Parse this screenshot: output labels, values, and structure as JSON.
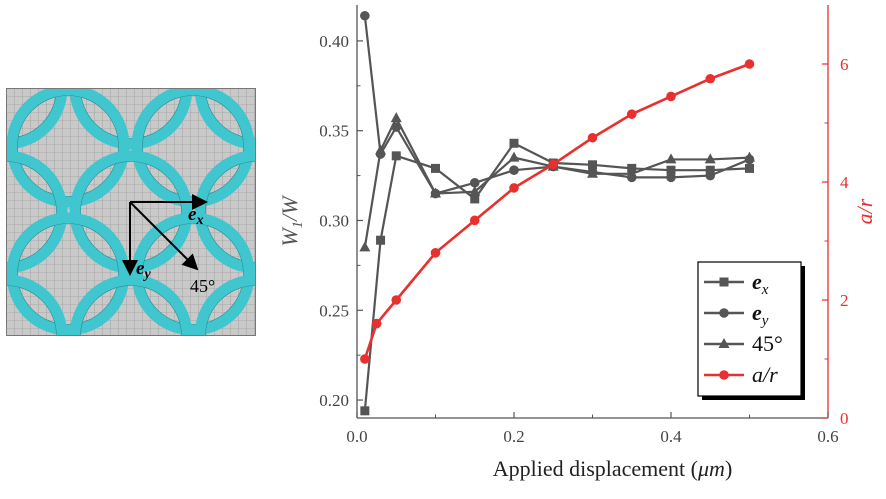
{
  "mesh": {
    "vector_labels": {
      "ex": "e",
      "ex_sub": "x",
      "ey": "e",
      "ey_sub": "y",
      "diag": "45°"
    },
    "colors": {
      "background": "#c9c9c9",
      "band": "#3fc6cf",
      "grid_line": "#8a8a8a",
      "arrow": "#000000"
    }
  },
  "chart_data": {
    "type": "line",
    "xlabel": "Applied displacement (μm)",
    "ylabel_left": "W1/W",
    "ylabel_right": "a/r",
    "xlim": [
      0,
      0.6
    ],
    "ylim_left": [
      0.19,
      0.42
    ],
    "ylim_right": [
      0,
      7
    ],
    "x_ticks": [
      "0.0",
      "0.2",
      "0.4",
      "0.6"
    ],
    "y_left_ticks": [
      "0.20",
      "0.25",
      "0.30",
      "0.35",
      "0.40"
    ],
    "y_right_ticks": [
      "0",
      "2",
      "4",
      "6"
    ],
    "legend_position": "bottom-right",
    "series": [
      {
        "name": "ex",
        "axis": "left",
        "marker": "square",
        "color": "#555555",
        "x": [
          0.01,
          0.03,
          0.05,
          0.1,
          0.15,
          0.2,
          0.25,
          0.3,
          0.35,
          0.4,
          0.45,
          0.5
        ],
        "y": [
          0.194,
          0.289,
          0.336,
          0.329,
          0.312,
          0.343,
          0.332,
          0.331,
          0.329,
          0.328,
          0.328,
          0.329
        ]
      },
      {
        "name": "ey",
        "axis": "left",
        "marker": "circle",
        "color": "#555555",
        "x": [
          0.01,
          0.03,
          0.05,
          0.1,
          0.15,
          0.2,
          0.25,
          0.3,
          0.35,
          0.4,
          0.45,
          0.5
        ],
        "y": [
          0.414,
          0.337,
          0.352,
          0.315,
          0.321,
          0.328,
          0.33,
          0.327,
          0.324,
          0.324,
          0.325,
          0.334
        ]
      },
      {
        "name": "45°",
        "axis": "left",
        "marker": "triangle",
        "color": "#555555",
        "x": [
          0.01,
          0.03,
          0.05,
          0.1,
          0.15,
          0.2,
          0.25,
          0.3,
          0.35,
          0.4,
          0.45,
          0.5
        ],
        "y": [
          0.285,
          0.339,
          0.357,
          0.315,
          0.316,
          0.335,
          0.33,
          0.326,
          0.326,
          0.334,
          0.334,
          0.335
        ]
      },
      {
        "name": "a/r",
        "axis": "right",
        "marker": "circle",
        "color": "#e8302e",
        "x": [
          0.01,
          0.025,
          0.05,
          0.1,
          0.15,
          0.2,
          0.25,
          0.3,
          0.35,
          0.4,
          0.45,
          0.5
        ],
        "y": [
          1.0,
          1.6,
          2.0,
          2.8,
          3.35,
          3.9,
          4.3,
          4.75,
          5.15,
          5.45,
          5.75,
          6.0
        ]
      }
    ],
    "legend": {
      "items": [
        {
          "label": "e",
          "sub": "x"
        },
        {
          "label": "e",
          "sub": "y"
        },
        {
          "label": "45°",
          "sub": ""
        },
        {
          "label": "a/r",
          "sub": ""
        }
      ]
    },
    "colors": {
      "left_axis": "#555555",
      "right_axis": "#e8302e"
    }
  }
}
